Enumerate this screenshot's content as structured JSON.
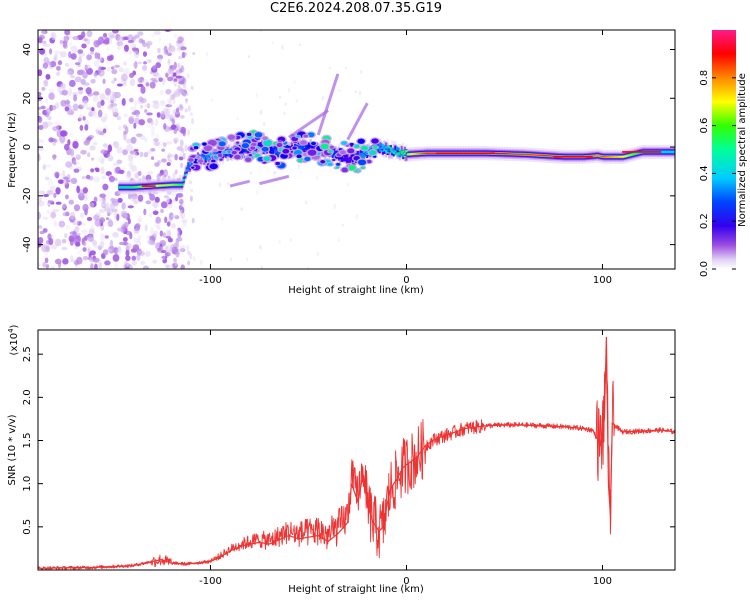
{
  "title": "C2E6.2024.208.07.35.G19",
  "colorbar": {
    "label": "Normalized spectral amplitude",
    "ticks": [
      "0.0",
      "0.2",
      "0.4",
      "0.6",
      "0.8"
    ],
    "tick_values": [
      0.0,
      0.2,
      0.4,
      0.6,
      0.8
    ],
    "range": [
      0,
      1
    ],
    "colormap": [
      "#ffffff",
      "#d8c4f0",
      "#9b4de0",
      "#5a00e8",
      "#0000ff",
      "#00ccff",
      "#00ff66",
      "#ffff00",
      "#ff8800",
      "#ff0000",
      "#ff1a8c"
    ]
  },
  "chart_data": [
    {
      "type": "heatmap",
      "title": "C2E6.2024.208.07.35.G19",
      "xlabel": "Height of straight line (km)",
      "ylabel": "Frequency (Hz)",
      "xlim": [
        -188,
        137
      ],
      "ylim": [
        -50,
        48
      ],
      "xticks": [
        -100,
        0,
        100
      ],
      "xtick_labels": [
        "-100",
        "0",
        "100"
      ],
      "yticks": [
        -40,
        -20,
        0,
        20,
        40
      ],
      "ytick_labels": [
        "-40",
        "-20",
        "0",
        "20",
        "40"
      ],
      "track": {
        "x": [
          -147,
          -140,
          -130,
          -120,
          -115,
          -112,
          -108,
          -100,
          -95,
          -90,
          -85,
          -80,
          -75,
          -70,
          -65,
          -60,
          -55,
          -50,
          -45,
          -40,
          -35,
          -30,
          -25,
          -20,
          -15,
          -10,
          -5,
          0,
          10,
          20,
          40,
          60,
          80,
          90,
          97,
          100,
          110,
          120,
          137
        ],
        "y": [
          -16.5,
          -16.5,
          -16,
          -15.5,
          -15.5,
          -8,
          -5,
          -4,
          -3,
          -2,
          -1,
          0,
          0,
          -1,
          -2,
          -1,
          0,
          0,
          -1,
          -2,
          -3,
          -5,
          -4,
          -2,
          0,
          -1,
          -2,
          -3,
          -2.5,
          -2.5,
          -2.5,
          -3,
          -4,
          -4,
          -3.5,
          -4,
          -4,
          -2,
          -2
        ],
        "amplitude": [
          0.55,
          0.6,
          0.7,
          0.65,
          0.6,
          0.45,
          0.45,
          0.5,
          0.4,
          0.45,
          0.4,
          0.45,
          0.35,
          0.4,
          0.45,
          0.4,
          0.45,
          0.4,
          0.35,
          0.45,
          0.4,
          0.3,
          0.45,
          0.5,
          0.45,
          0.55,
          0.55,
          0.65,
          0.9,
          0.95,
          0.95,
          0.85,
          0.9,
          0.95,
          0.8,
          0.85,
          0.7,
          0.55,
          0.5
        ]
      }
    },
    {
      "type": "line",
      "xlabel": "Height of straight line (km)",
      "ylabel": "SNR (10 * v/v)",
      "y_multiplier": "(x10",
      "y_multiplier_exp": "4",
      "xlim": [
        -188,
        137
      ],
      "ylim": [
        0,
        2.78
      ],
      "xticks": [
        -100,
        0,
        100
      ],
      "xtick_labels": [
        "-100",
        "0",
        "100"
      ],
      "yticks": [
        0.5,
        1.0,
        1.5,
        2.0,
        2.5
      ],
      "ytick_labels": [
        "0.5",
        "1.0",
        "1.5",
        "2.0",
        "2.5"
      ],
      "color": "#ee3333",
      "series": [
        {
          "x": [
            -188,
            -160,
            -140,
            -125,
            -120,
            -112,
            -100,
            -95,
            -90,
            -85,
            -80,
            -75,
            -70,
            -65,
            -60,
            -55,
            -50,
            -45,
            -40,
            -35,
            -30,
            -28,
            -25,
            -22,
            -20,
            -17,
            -14,
            -12,
            -10,
            -8,
            -5,
            -2,
            0,
            5,
            10,
            15,
            20,
            25,
            30,
            40,
            50,
            60,
            70,
            80,
            90,
            95,
            99,
            101,
            102,
            103,
            104,
            105,
            110,
            120,
            130,
            137
          ],
          "y": [
            0.02,
            0.03,
            0.05,
            0.12,
            0.08,
            0.07,
            0.1,
            0.15,
            0.22,
            0.27,
            0.3,
            0.32,
            0.3,
            0.35,
            0.4,
            0.36,
            0.38,
            0.4,
            0.33,
            0.42,
            0.55,
            1.0,
            0.8,
            1.1,
            0.75,
            0.55,
            0.45,
            0.5,
            0.75,
            0.95,
            1.05,
            1.18,
            1.22,
            1.3,
            1.45,
            1.52,
            1.56,
            1.6,
            1.64,
            1.67,
            1.68,
            1.68,
            1.67,
            1.66,
            1.64,
            1.62,
            1.45,
            1.75,
            2.7,
            1.0,
            0.65,
            1.7,
            1.6,
            1.61,
            1.62,
            1.6
          ]
        }
      ]
    }
  ]
}
